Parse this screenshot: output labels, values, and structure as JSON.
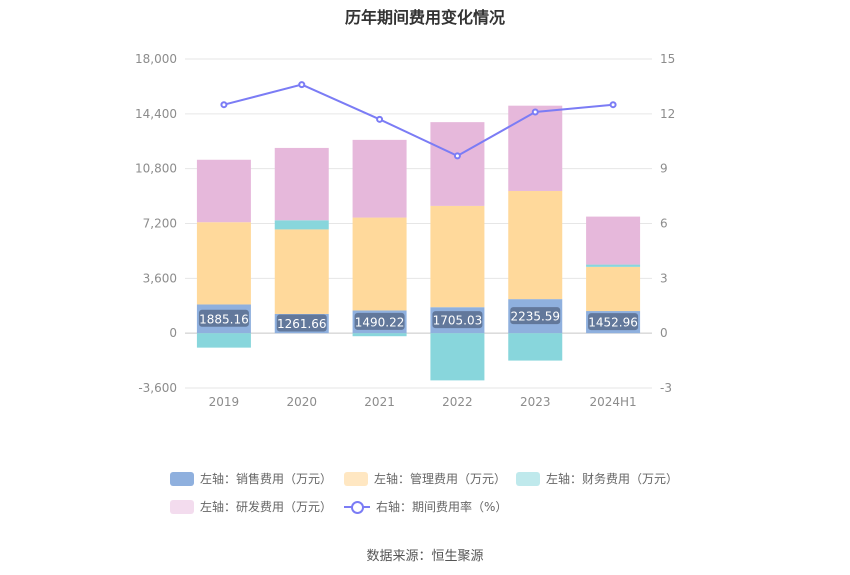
{
  "chart_data": {
    "type": "bar",
    "title": "历年期间费用变化情况",
    "categories": [
      "2019",
      "2020",
      "2021",
      "2022",
      "2023",
      "2024H1"
    ],
    "left_axis": {
      "ticks": [
        "18,000",
        "14,400",
        "10,800",
        "7,200",
        "3,600",
        "0",
        "-3,600"
      ],
      "ylim": [
        -3600,
        18000
      ]
    },
    "right_axis": {
      "ticks": [
        "15",
        "12",
        "9",
        "6",
        "3",
        "0",
        "-3"
      ],
      "ylim": [
        -3,
        15
      ]
    },
    "series": [
      {
        "name": "左轴：销售费用（万元）",
        "type": "stacked-bar",
        "color": "#8fb0de",
        "values": [
          1885.16,
          1261.66,
          1490.22,
          1705.03,
          2235.59,
          1452.96
        ],
        "labels": [
          "1885.16",
          "1261.66",
          "1490.22",
          "1705.03",
          "2235.59",
          "1452.96"
        ]
      },
      {
        "name": "左轴：管理费用（万元）",
        "type": "stacked-bar",
        "color": "#ffd99b",
        "values": [
          5400,
          5550,
          6100,
          6650,
          7100,
          2900
        ]
      },
      {
        "name": "左轴：财务费用（万元）",
        "type": "stacked-bar",
        "color": "#88d6dc",
        "values": [
          -950,
          600,
          -200,
          -3100,
          -1800,
          150
        ]
      },
      {
        "name": "左轴：研发费用（万元）",
        "type": "stacked-bar",
        "color": "#e6b8db",
        "values": [
          4100,
          4750,
          5100,
          5500,
          5600,
          3150
        ]
      },
      {
        "name": "右轴：期间费用率（%）",
        "type": "line",
        "axis": "right",
        "color": "#7b7cf5",
        "values": [
          12.5,
          13.6,
          11.7,
          9.7,
          12.1,
          12.5
        ]
      }
    ]
  },
  "source": "数据来源：恒生聚源"
}
